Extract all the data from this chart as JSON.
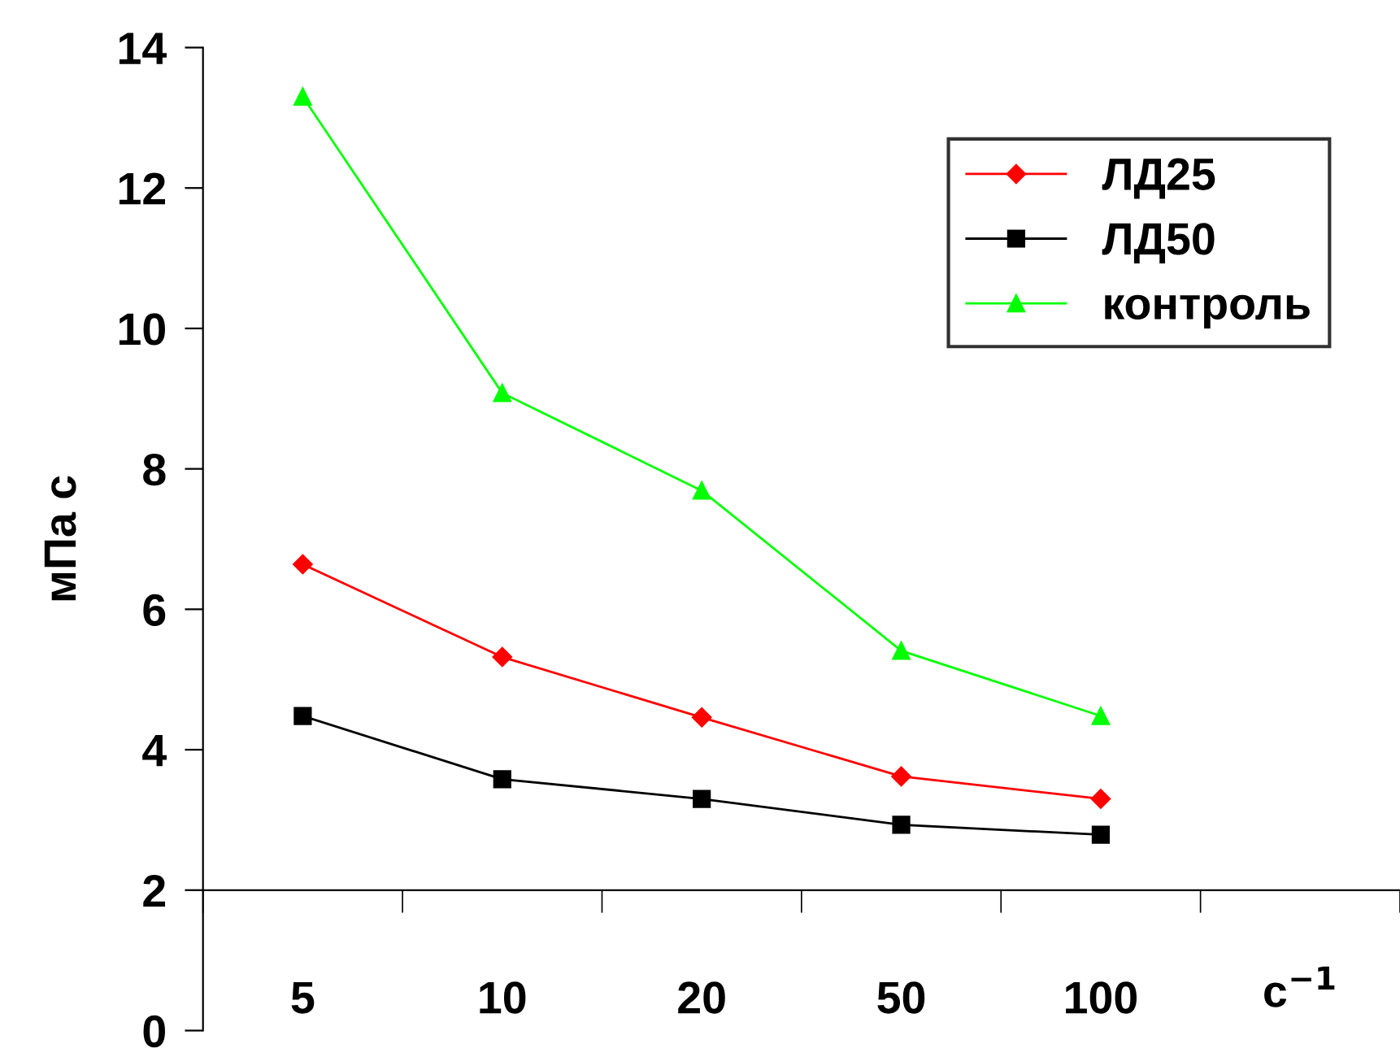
{
  "chart_data": {
    "type": "line",
    "ylabel": "мПа с",
    "xlabel": "с$^{−1}$",
    "categories": [
      "5",
      "10",
      "20",
      "50",
      "100"
    ],
    "series": [
      {
        "name": "ЛД25",
        "color": "#ff0000",
        "marker": "diamond",
        "values": [
          6.64,
          5.32,
          4.46,
          3.62,
          3.3
        ]
      },
      {
        "name": "ЛД50",
        "color": "#000000",
        "marker": "square",
        "values": [
          4.48,
          3.58,
          3.3,
          2.93,
          2.79
        ]
      },
      {
        "name": "контроль",
        "color": "#00ff00",
        "marker": "triangle",
        "values": [
          13.3,
          9.08,
          7.69,
          5.41,
          4.48
        ]
      }
    ],
    "ylim": [
      0,
      14
    ],
    "yticks": [
      0,
      2,
      4,
      6,
      8,
      10,
      12,
      14
    ],
    "grid": false,
    "legend": "top right"
  }
}
